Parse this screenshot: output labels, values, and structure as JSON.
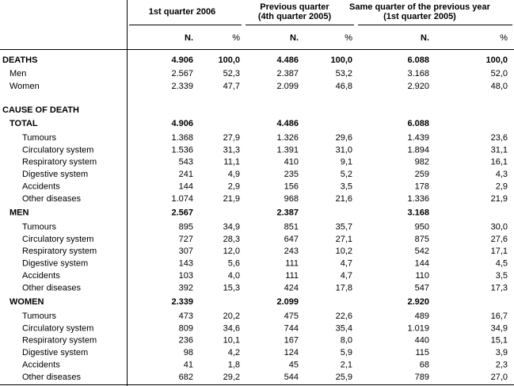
{
  "header": {
    "groups": [
      {
        "lines": [
          "1st quarter 2006"
        ]
      },
      {
        "lines": [
          "Previous quarter",
          "(4th quarter 2005)"
        ]
      },
      {
        "lines": [
          "Same quarter of the previous year",
          "(1st quarter 2005)"
        ]
      }
    ],
    "subheaders": [
      "N.",
      "%",
      "N.",
      "%",
      "N.",
      "%"
    ]
  },
  "deaths": {
    "label": "DEATHS",
    "cells": [
      "4.906",
      "100,0",
      "4.486",
      "100,0",
      "6.088",
      "100,0"
    ],
    "rows": [
      {
        "label": "Men",
        "cells": [
          "2.567",
          "52,3",
          "2.387",
          "53,2",
          "3.168",
          "52,0"
        ]
      },
      {
        "label": "Women",
        "cells": [
          "2.339",
          "47,7",
          "2.099",
          "46,8",
          "2.920",
          "48,0"
        ]
      }
    ]
  },
  "cause_of_death": {
    "label": "CAUSE OF DEATH",
    "groups": [
      {
        "label": "TOTAL",
        "totals": [
          "4.906",
          "4.486",
          "6.088"
        ],
        "rows": [
          {
            "label": "Tumours",
            "cells": [
              "1.368",
              "27,9",
              "1.326",
              "29,6",
              "1.439",
              "23,6"
            ]
          },
          {
            "label": "Circulatory system",
            "cells": [
              "1.536",
              "31,3",
              "1.391",
              "31,0",
              "1.894",
              "31,1"
            ]
          },
          {
            "label": "Respiratory system",
            "cells": [
              "543",
              "11,1",
              "410",
              "9,1",
              "982",
              "16,1"
            ]
          },
          {
            "label": "Digestive system",
            "cells": [
              "241",
              "4,9",
              "235",
              "5,2",
              "259",
              "4,3"
            ]
          },
          {
            "label": "Accidents",
            "cells": [
              "144",
              "2,9",
              "156",
              "3,5",
              "178",
              "2,9"
            ]
          },
          {
            "label": "Other diseases",
            "cells": [
              "1.074",
              "21,9",
              "968",
              "21,6",
              "1.336",
              "21,9"
            ]
          }
        ]
      },
      {
        "label": "MEN",
        "totals": [
          "2.567",
          "2.387",
          "3.168"
        ],
        "rows": [
          {
            "label": "Tumours",
            "cells": [
              "895",
              "34,9",
              "851",
              "35,7",
              "950",
              "30,0"
            ]
          },
          {
            "label": "Circulatory system",
            "cells": [
              "727",
              "28,3",
              "647",
              "27,1",
              "875",
              "27,6"
            ]
          },
          {
            "label": "Respiratory system",
            "cells": [
              "307",
              "12,0",
              "243",
              "10,2",
              "542",
              "17,1"
            ]
          },
          {
            "label": "Digestive system",
            "cells": [
              "143",
              "5,6",
              "111",
              "4,7",
              "144",
              "4,5"
            ]
          },
          {
            "label": "Accidents",
            "cells": [
              "103",
              "4,0",
              "111",
              "4,7",
              "110",
              "3,5"
            ]
          },
          {
            "label": "Other diseases",
            "cells": [
              "392",
              "15,3",
              "424",
              "17,8",
              "547",
              "17,3"
            ]
          }
        ]
      },
      {
        "label": "WOMEN",
        "totals": [
          "2.339",
          "2.099",
          "2.920"
        ],
        "rows": [
          {
            "label": "Tumours",
            "cells": [
              "473",
              "20,2",
              "475",
              "22,6",
              "489",
              "16,7"
            ]
          },
          {
            "label": "Circulatory system",
            "cells": [
              "809",
              "34,6",
              "744",
              "35,4",
              "1.019",
              "34,9"
            ]
          },
          {
            "label": "Respiratory system",
            "cells": [
              "236",
              "10,1",
              "167",
              "8,0",
              "440",
              "15,1"
            ]
          },
          {
            "label": "Digestive system",
            "cells": [
              "98",
              "4,2",
              "124",
              "5,9",
              "115",
              "3,9"
            ]
          },
          {
            "label": "Accidents",
            "cells": [
              "41",
              "1,8",
              "45",
              "2,1",
              "68",
              "2,3"
            ]
          },
          {
            "label": "Other diseases",
            "cells": [
              "682",
              "29,2",
              "544",
              "25,9",
              "789",
              "27,0"
            ]
          }
        ]
      }
    ]
  }
}
